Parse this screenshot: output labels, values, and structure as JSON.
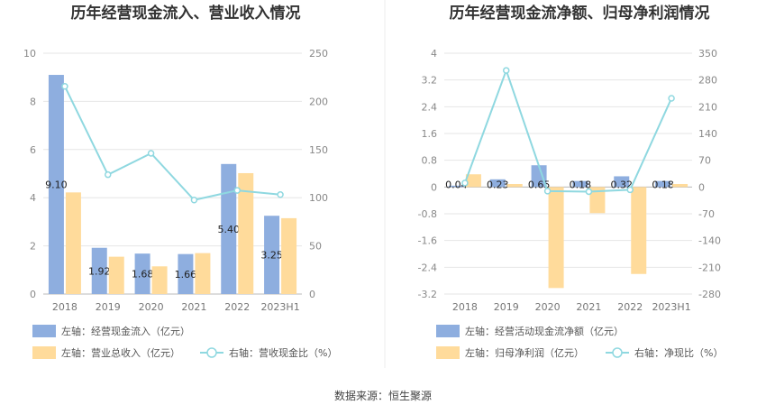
{
  "source": "数据来源：恒生聚源",
  "colors": {
    "blue": "#8eaedf",
    "orange": "#ffdb9b",
    "line": "#8fd8e0",
    "grid": "#e6e6e6"
  },
  "chart_data": [
    {
      "type": "bar",
      "title": "历年经营现金流入、营业收入情况",
      "categories": [
        "2018",
        "2019",
        "2020",
        "2021",
        "2022",
        "2023H1"
      ],
      "left_ylim": [
        0,
        10
      ],
      "left_ticks": [
        "0",
        "2",
        "4",
        "6",
        "8",
        "10"
      ],
      "right_ylim": [
        0,
        250
      ],
      "right_ticks": [
        "0",
        "50",
        "100",
        "150",
        "200",
        "250"
      ],
      "series": [
        {
          "name": "左轴：经营现金流入（亿元）",
          "axis": "left",
          "kind": "bar",
          "color": "#8eaedf",
          "values": [
            9.1,
            1.92,
            1.68,
            1.66,
            5.4,
            3.25
          ],
          "labels": [
            "9.10",
            "1.92",
            "1.68",
            "1.66",
            "5.40",
            "3.25"
          ]
        },
        {
          "name": "左轴：营业总收入（亿元）",
          "axis": "left",
          "kind": "bar",
          "color": "#ffdb9b",
          "values": [
            4.22,
            1.55,
            1.15,
            1.7,
            5.02,
            3.15
          ]
        },
        {
          "name": "右轴：营收现金比（%）",
          "axis": "right",
          "kind": "line",
          "color": "#8fd8e0",
          "values": [
            215.6,
            123.9,
            146.1,
            97.6,
            107.6,
            103.2
          ]
        }
      ],
      "legend": "bottom"
    },
    {
      "type": "bar",
      "title": "历年经营现金流净额、归母净利润情况",
      "categories": [
        "2018",
        "2019",
        "2020",
        "2021",
        "2022",
        "2023H1"
      ],
      "left_ylim": [
        -3.2,
        4
      ],
      "left_ticks": [
        "-3.2",
        "-2.4",
        "-1.6",
        "-0.8",
        "0",
        "0.8",
        "1.6",
        "2.4",
        "3.2",
        "4"
      ],
      "right_ylim": [
        -280,
        350
      ],
      "right_ticks": [
        "-280",
        "-210",
        "-140",
        "-70",
        "0",
        "70",
        "140",
        "210",
        "280",
        "350"
      ],
      "series": [
        {
          "name": "左轴：经营活动现金流净额（亿元）",
          "axis": "left",
          "kind": "bar",
          "color": "#8eaedf",
          "values": [
            0.04,
            0.23,
            0.65,
            0.18,
            0.32,
            0.18
          ],
          "labels": [
            "0.04",
            "0.23",
            "0.65",
            "0.18",
            "0.32",
            "0.18"
          ]
        },
        {
          "name": "左轴：归母净利润（亿元）",
          "axis": "left",
          "kind": "bar",
          "color": "#ffdb9b",
          "values": [
            0.38,
            0.09,
            -3.02,
            -0.78,
            -2.6,
            0.09
          ]
        },
        {
          "name": "右轴：净现比（%）",
          "axis": "right",
          "kind": "line",
          "color": "#8fd8e0",
          "values": [
            10.5,
            305,
            -10.7,
            -12.1,
            -7.3,
            232
          ]
        }
      ],
      "legend": "bottom"
    }
  ]
}
